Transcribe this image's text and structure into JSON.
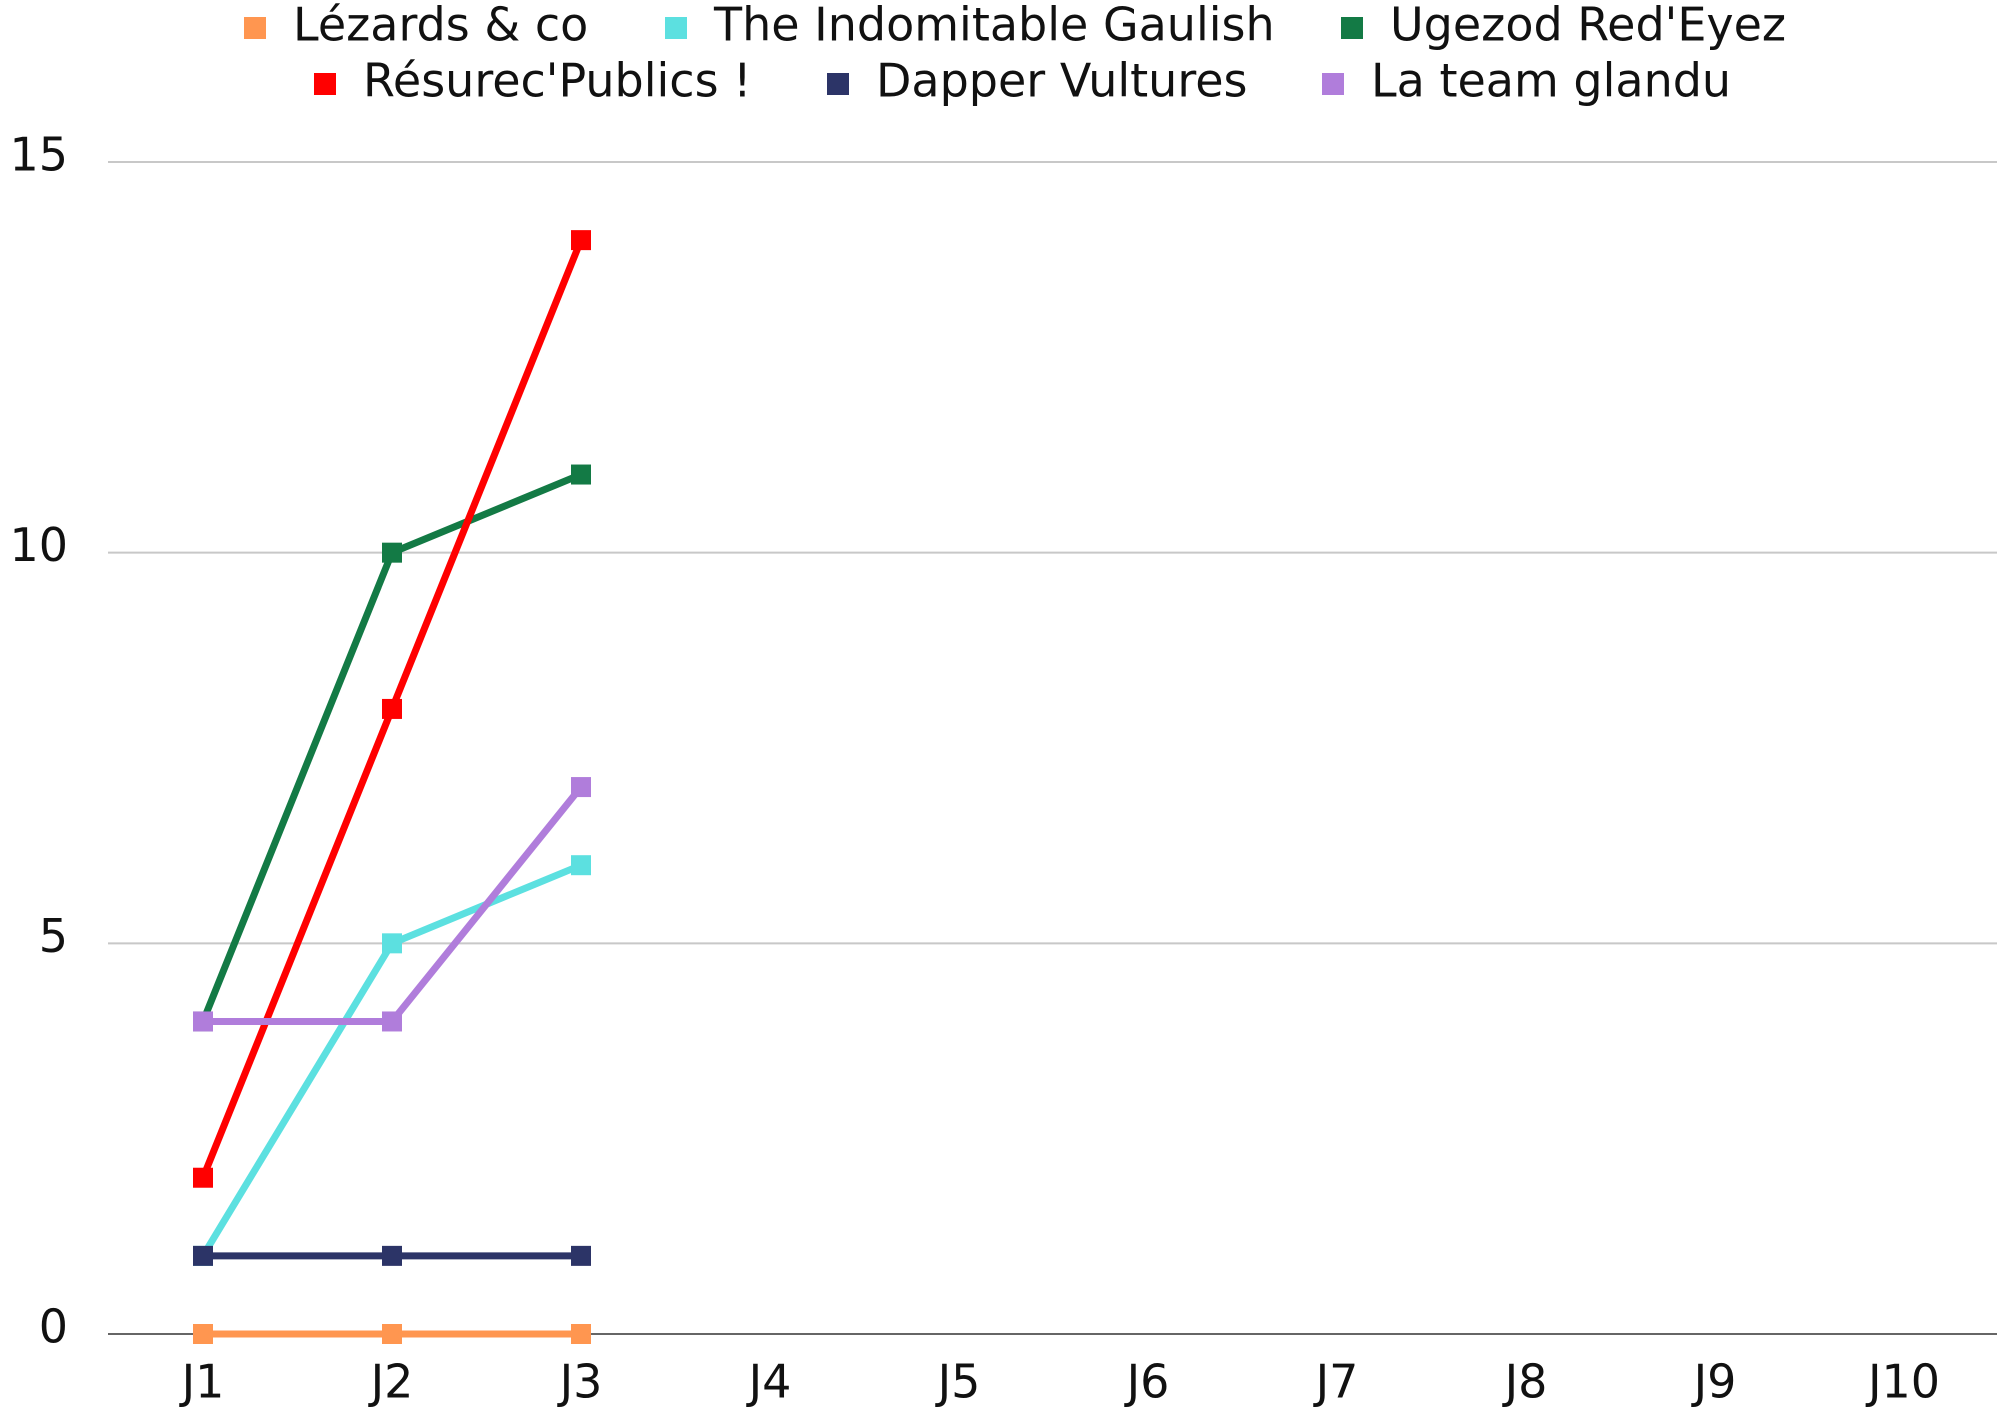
{
  "chart_data": {
    "type": "line",
    "categories": [
      "J1",
      "J2",
      "J3",
      "J4",
      "J5",
      "J6",
      "J7",
      "J8",
      "J9",
      "J10"
    ],
    "series": [
      {
        "name": "Lézards & co",
        "color": "#ff9650",
        "values": [
          0,
          0,
          0,
          null,
          null,
          null,
          null,
          null,
          null,
          null
        ]
      },
      {
        "name": "The Indomitable Gaulish",
        "color": "#5ce0e0",
        "values": [
          1,
          5,
          6,
          null,
          null,
          null,
          null,
          null,
          null,
          null
        ]
      },
      {
        "name": "Ugezod Red'Eyez",
        "color": "#137a45",
        "values": [
          4,
          10,
          11,
          null,
          null,
          null,
          null,
          null,
          null,
          null
        ]
      },
      {
        "name": "Résurec'Publics !",
        "color": "#ff0000",
        "values": [
          2,
          8,
          14,
          null,
          null,
          null,
          null,
          null,
          null,
          null
        ]
      },
      {
        "name": "Dapper Vultures",
        "color": "#2c3467",
        "values": [
          1,
          1,
          1,
          null,
          null,
          null,
          null,
          null,
          null,
          null
        ]
      },
      {
        "name": "La team glandu",
        "color": "#b07ddb",
        "values": [
          4,
          4,
          7,
          null,
          null,
          null,
          null,
          null,
          null,
          null
        ]
      }
    ],
    "ylim": [
      0,
      15
    ],
    "yticks": [
      0,
      5,
      10,
      15
    ],
    "grid": true,
    "legend": "top"
  }
}
